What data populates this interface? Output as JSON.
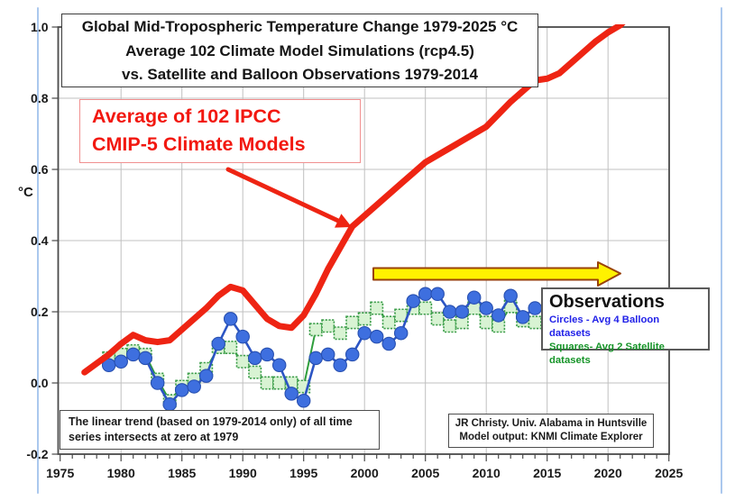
{
  "title_box": {
    "line1": "Global Mid-Tropospheric Temperature Change 1979-2025 °C",
    "line2": "Average 102 Climate Model Simulations (rcp4.5)",
    "line3": "vs. Satellite and Balloon Observations 1979-2014"
  },
  "model_label": {
    "line1": "Average of 102 IPCC",
    "line2": "CMIP-5 Climate Models"
  },
  "observations_box": {
    "title": "Observations",
    "balloon_line": "Circles - Avg 4 Balloon datasets",
    "satellite_line": "Squares- Avg 2 Satellite datasets"
  },
  "trend_note": {
    "line1": "The linear trend (based on 1979-2014 only) of all time",
    "line2": "series intersects at zero at 1979"
  },
  "credit_box": {
    "line1": "JR Christy. Univ. Alabama in Huntsville",
    "line2": "Model output: KNMI Climate Explorer"
  },
  "colors": {
    "model_line": "#ee2413",
    "balloon_marker": "#3e6fdf",
    "balloon_line": "#2c55c4",
    "satellite_line": "#2f9e3c",
    "satellite_marker_fill": "#d8f3d3",
    "satellite_marker_stroke": "#3f9f4c",
    "yellow_arrow_fill": "#fff200",
    "yellow_arrow_stroke": "#99420a",
    "gridline": "#c0c0c0",
    "plot_border": "#4a4a4a",
    "balloon_text": "#2222e8",
    "satellite_text": "#169428",
    "model_text": "#f21810"
  },
  "chart_data": {
    "type": "line",
    "title": "Global Mid-Tropospheric Temperature Change 1979-2025 °C",
    "subtitle1": "Average 102 Climate Model Simulations (rcp4.5)",
    "subtitle2": "vs. Satellite and Balloon Observations 1979-2014",
    "ylabel": "°C",
    "xlabel": "",
    "ylim": [
      -0.2,
      1.0
    ],
    "xlim": [
      1974.7,
      2025
    ],
    "grid": true,
    "legend_position": "in-plot annotation boxes",
    "y_tick_labels": [
      "1.0",
      "0.8",
      "0.6",
      "0.4",
      "0.2",
      "0.0",
      "-0.2"
    ],
    "y_tick_values": [
      1.0,
      0.8,
      0.6,
      0.4,
      0.2,
      0.0,
      -0.2
    ],
    "x_tick_labels": [
      "1975",
      "1980",
      "1985",
      "1990",
      "1995",
      "2000",
      "2005",
      "2010",
      "2015",
      "2020",
      "2025"
    ],
    "x_tick_values": [
      1975,
      1980,
      1985,
      1990,
      1995,
      2000,
      2005,
      2010,
      2015,
      2020,
      2025
    ],
    "minor_x_tick_step_years": 1,
    "series": [
      {
        "name": "Average of 102 IPCC CMIP-5 Climate Models",
        "marker": "none",
        "color": "#ee2413",
        "line_width": 7,
        "x": [
          1977,
          1978,
          1979,
          1980,
          1981,
          1982,
          1983,
          1984,
          1985,
          1986,
          1987,
          1988,
          1989,
          1990,
          1991,
          1992,
          1993,
          1994,
          1995,
          1996,
          1997,
          1998,
          1999,
          2000,
          2001,
          2002,
          2003,
          2004,
          2005,
          2006,
          2007,
          2008,
          2009,
          2010,
          2011,
          2012,
          2013,
          2014,
          2015,
          2016,
          2017,
          2018,
          2019,
          2020,
          2021,
          2022
        ],
        "values": [
          0.03,
          0.055,
          0.08,
          0.11,
          0.135,
          0.12,
          0.115,
          0.12,
          0.15,
          0.18,
          0.21,
          0.245,
          0.27,
          0.26,
          0.22,
          0.18,
          0.16,
          0.155,
          0.19,
          0.25,
          0.32,
          0.38,
          0.44,
          0.47,
          0.5,
          0.53,
          0.56,
          0.59,
          0.62,
          0.64,
          0.66,
          0.68,
          0.7,
          0.72,
          0.755,
          0.79,
          0.82,
          0.85,
          0.855,
          0.87,
          0.9,
          0.93,
          0.96,
          0.985,
          1.005,
          1.04
        ]
      },
      {
        "name": "Avg 4 Balloon datasets",
        "marker": "circle",
        "color": "#3e6fdf",
        "x": [
          1979,
          1980,
          1981,
          1982,
          1983,
          1984,
          1985,
          1986,
          1987,
          1988,
          1989,
          1990,
          1991,
          1992,
          1993,
          1994,
          1995,
          1996,
          1997,
          1998,
          1999,
          2000,
          2001,
          2002,
          2003,
          2004,
          2005,
          2006,
          2007,
          2008,
          2009,
          2010,
          2011,
          2012,
          2013,
          2014
        ],
        "values": [
          0.05,
          0.06,
          0.08,
          0.07,
          0.0,
          -0.06,
          -0.02,
          -0.01,
          0.02,
          0.11,
          0.18,
          0.13,
          0.07,
          0.08,
          0.05,
          -0.03,
          -0.05,
          0.07,
          0.08,
          0.05,
          0.08,
          0.14,
          0.13,
          0.11,
          0.14,
          0.23,
          0.25,
          0.25,
          0.2,
          0.2,
          0.24,
          0.21,
          0.19,
          0.245,
          0.185,
          0.21
        ]
      },
      {
        "name": "Avg 2 Satellite datasets",
        "marker": "square",
        "color": "#2f9e3c",
        "x": [
          1979,
          1980,
          1981,
          1982,
          1983,
          1984,
          1985,
          1986,
          1987,
          1988,
          1989,
          1990,
          1991,
          1992,
          1993,
          1994,
          1995,
          1996,
          1997,
          1998,
          1999,
          2000,
          2001,
          2002,
          2003,
          2004,
          2005,
          2006,
          2007,
          2008,
          2009,
          2010,
          2011,
          2012,
          2013,
          2014
        ],
        "values": [
          0.07,
          0.08,
          0.09,
          0.08,
          0.01,
          -0.05,
          -0.01,
          0.01,
          0.04,
          0.1,
          0.1,
          0.06,
          0.03,
          0.0,
          0.0,
          0.0,
          -0.01,
          0.15,
          0.16,
          0.14,
          0.17,
          0.18,
          0.21,
          0.17,
          0.19,
          0.21,
          0.21,
          0.18,
          0.16,
          0.17,
          0.21,
          0.17,
          0.16,
          0.215,
          0.175,
          0.17
        ]
      }
    ],
    "annotations": [
      {
        "name": "model-label",
        "text": "Average of 102 IPCC CMIP-5 Climate Models",
        "arrow": "red arrow pointing to model line near year 1999"
      },
      {
        "name": "observations-arrow",
        "text": "yellow arrow pointing right toward Observations legend box"
      }
    ]
  }
}
